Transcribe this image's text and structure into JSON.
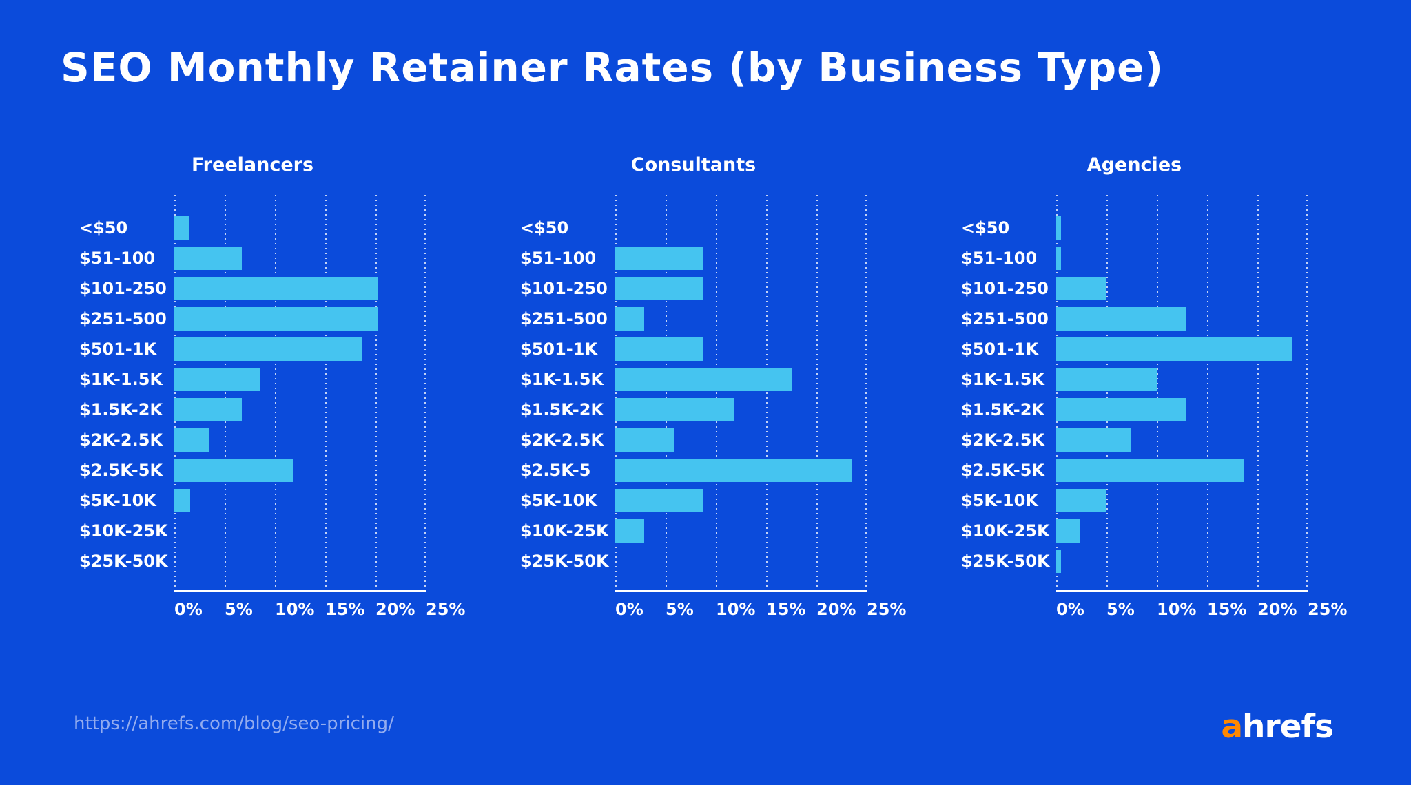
{
  "title": "SEO Monthly Retainer Rates (by Business Type)",
  "source_url": "https://ahrefs.com/blog/seo-pricing/",
  "logo": {
    "accent_letter": "a",
    "rest": "hrefs"
  },
  "colors": {
    "background": "#0B4BDB",
    "bar": "#45C4F0",
    "text": "#FFFFFF",
    "source_url_text": "#93ACEF",
    "logo_accent": "#FF8800",
    "gridline": "rgba(255,255,255,0.75)"
  },
  "axis": {
    "ticks": [
      "0%",
      "5%",
      "10%",
      "15%",
      "20%",
      "25%"
    ],
    "min": 0,
    "max": 25,
    "unit": "%"
  },
  "chart_data": [
    {
      "type": "bar",
      "orientation": "horizontal",
      "title": "Freelancers",
      "categories": [
        "<$50",
        "$51-100",
        "$101-250",
        "$251-500",
        "$501-1K",
        "$1K-1.5K",
        "$1.5K-2K",
        "$2K-2.5K",
        "$2.5K-5K",
        "$5K-10K",
        "$10K-25K",
        "$25K-50K"
      ],
      "values": [
        1.5,
        6.7,
        20.3,
        20.3,
        18.7,
        8.5,
        6.7,
        3.5,
        11.8,
        1.6,
        0,
        0
      ],
      "xlabel": "",
      "ylabel": "",
      "xlim": [
        0,
        25
      ],
      "grid": true,
      "legend": false
    },
    {
      "type": "bar",
      "orientation": "horizontal",
      "title": "Consultants",
      "categories": [
        "<$50",
        "$51-100",
        "$101-250",
        "$251-500",
        "$501-1K",
        "$1K-1.5K",
        "$1.5K-2K",
        "$2K-2.5K",
        "$2.5K-5",
        "$5K-10K",
        "$10K-25K",
        "$25K-50K"
      ],
      "values": [
        0,
        8.8,
        8.8,
        2.9,
        8.8,
        17.6,
        11.8,
        5.9,
        23.5,
        8.8,
        2.9,
        0
      ],
      "xlabel": "",
      "ylabel": "",
      "xlim": [
        0,
        25
      ],
      "grid": true,
      "legend": false
    },
    {
      "type": "bar",
      "orientation": "horizontal",
      "title": "Agencies",
      "categories": [
        "<$50",
        "$51-100",
        "$101-250",
        "$251-500",
        "$501-1K",
        "$1K-1.5K",
        "$1.5K-2K",
        "$2K-2.5K",
        "$2.5K-5K",
        "$5K-10K",
        "$10K-25K",
        "$25K-50K"
      ],
      "values": [
        0.5,
        0.5,
        4.9,
        12.9,
        23.4,
        10.0,
        12.9,
        7.4,
        18.7,
        4.9,
        2.3,
        0.5
      ],
      "xlabel": "",
      "ylabel": "",
      "xlim": [
        0,
        25
      ],
      "grid": true,
      "legend": false
    }
  ]
}
